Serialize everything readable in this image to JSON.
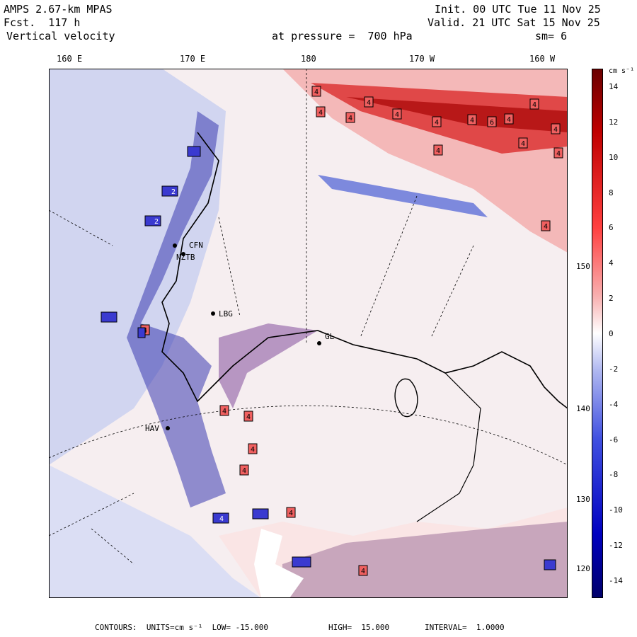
{
  "header": {
    "model": "AMPS 2.67-km MPAS",
    "forecast": "Fcst.  117 h",
    "field": "Vertical velocity",
    "init": "Init. 00 UTC Tue 11 Nov 25",
    "valid": "Valid. 21 UTC Sat 15 Nov 25",
    "pressure_label": "at pressure =  700 hPa",
    "smoothing": "sm= 6"
  },
  "longitude_ticks": [
    "160 E",
    "170 E",
    "180",
    "170 W",
    "160 W"
  ],
  "latitude_labels": [
    "150 W",
    "140 W",
    "130 W",
    "120 W"
  ],
  "colorbar": {
    "units": "cm s⁻¹",
    "labels": [
      "14",
      "12",
      "10",
      "8",
      "6",
      "4",
      "2",
      "0",
      "-2",
      "-4",
      "-6",
      "-8",
      "-10",
      "-12",
      "-14"
    ],
    "min": -15,
    "max": 15,
    "neg_color": "#1010c8",
    "pos_color": "#b01010",
    "mid_color": "#ffffff"
  },
  "stations": [
    "CFN",
    "NZTB",
    "LBG",
    "GL",
    "HAV"
  ],
  "footer": {
    "contours": "CONTOURS:  UNITS=cm s⁻¹  LOW= -15.000",
    "high": "HIGH=  15.000",
    "interval": "INTERVAL=  1.0000"
  },
  "map_markers": {
    "boxes_4": 22,
    "boxes_blue": 10
  }
}
